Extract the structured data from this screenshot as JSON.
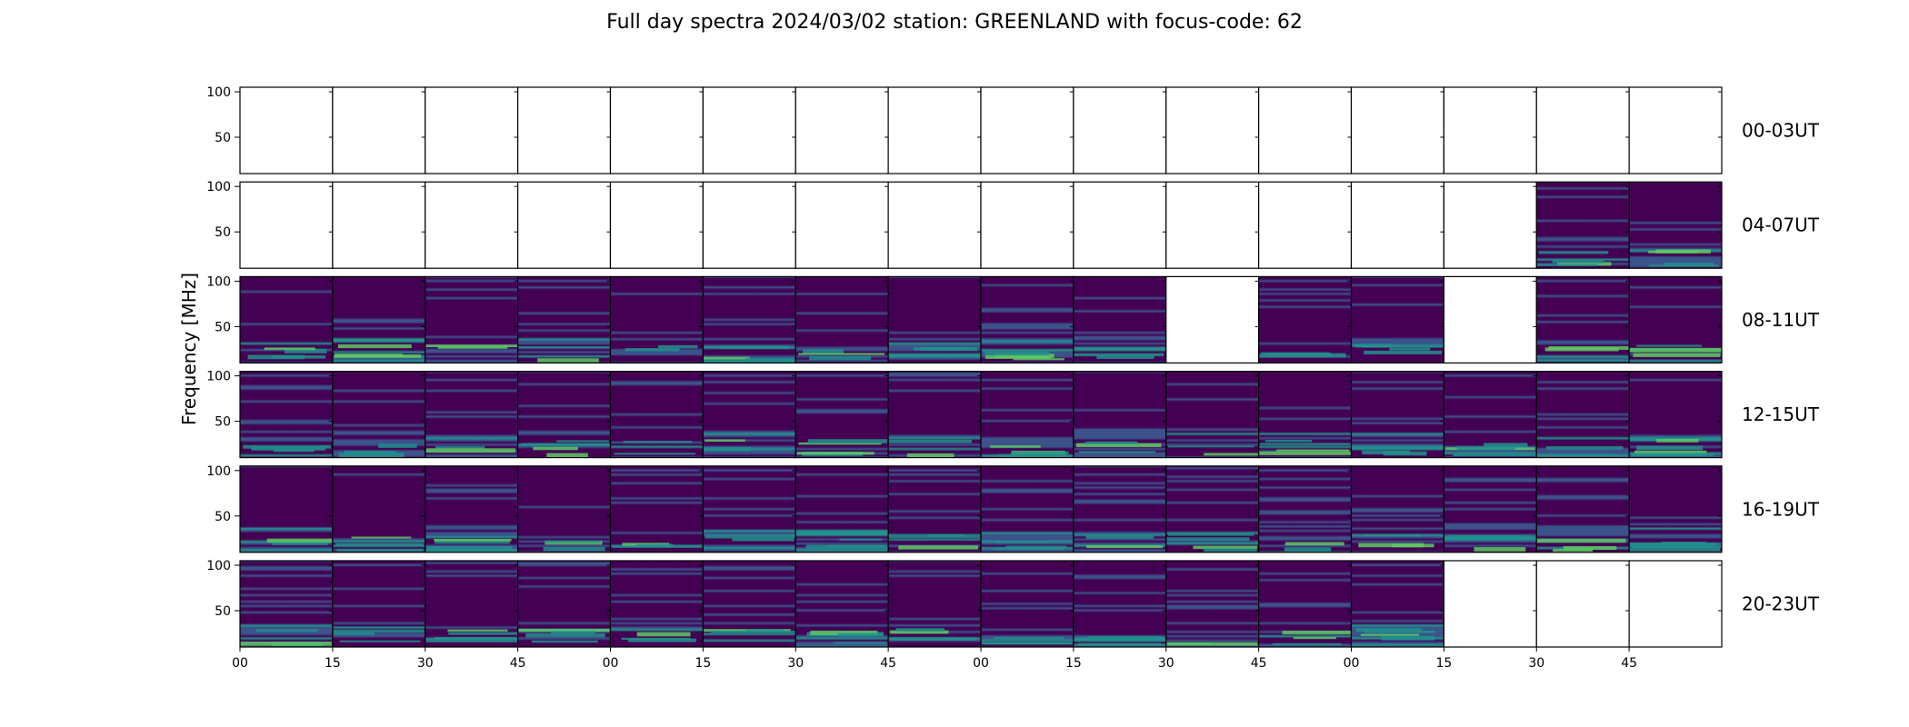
{
  "chart_data": {
    "type": "heatmap",
    "title": "Full day spectra 2024/03/02 station: GREENLAND with focus-code: 62",
    "ylabel": "Frequency [MHz]",
    "xlabel": "",
    "y_ticks": [
      "100",
      "50"
    ],
    "ylim": [
      10,
      105
    ],
    "x_ticks": [
      "00",
      "15",
      "30",
      "45",
      "00",
      "15",
      "30",
      "45",
      "00",
      "15",
      "30",
      "45",
      "00",
      "15",
      "30",
      "45"
    ],
    "rows": [
      {
        "label": "00-03UT",
        "panels": [
          0,
          0,
          0,
          0,
          0,
          0,
          0,
          0,
          0,
          0,
          0,
          0,
          0,
          0,
          0,
          0
        ]
      },
      {
        "label": "04-07UT",
        "panels": [
          0,
          0,
          0,
          0,
          0,
          0,
          0,
          0,
          0,
          0,
          0,
          0,
          0,
          0,
          1,
          1
        ]
      },
      {
        "label": "08-11UT",
        "panels": [
          1,
          1,
          1,
          1,
          1,
          1,
          1,
          1,
          1,
          1,
          0,
          1,
          1,
          0,
          1,
          1
        ]
      },
      {
        "label": "12-15UT",
        "panels": [
          1,
          1,
          1,
          1,
          1,
          1,
          1,
          1,
          1,
          1,
          1,
          1,
          1,
          1,
          1,
          1
        ]
      },
      {
        "label": "16-19UT",
        "panels": [
          1,
          1,
          1,
          1,
          1,
          1,
          1,
          1,
          1,
          1,
          1,
          1,
          1,
          1,
          1,
          1
        ]
      },
      {
        "label": "20-23UT",
        "panels": [
          1,
          1,
          1,
          1,
          1,
          1,
          1,
          1,
          1,
          1,
          1,
          1,
          1,
          0,
          0,
          0
        ]
      }
    ],
    "colormap": [
      "#440154",
      "#3b528b",
      "#21918c",
      "#5ec962",
      "#fde725"
    ]
  }
}
